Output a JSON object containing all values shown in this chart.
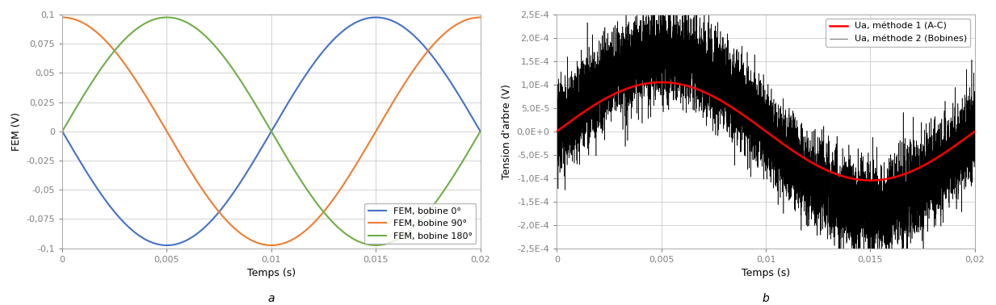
{
  "plot_a": {
    "xlabel": "Temps (s)",
    "ylabel": "FEM (V)",
    "xlim": [
      0,
      0.02
    ],
    "ylim": [
      -0.1,
      0.1
    ],
    "xticks": [
      0,
      0.005,
      0.01,
      0.015,
      0.02
    ],
    "xtick_labels": [
      "0",
      "0,005",
      "0,01",
      "0,015",
      "0,02"
    ],
    "yticks": [
      -0.1,
      -0.075,
      -0.05,
      -0.025,
      0,
      0.025,
      0.05,
      0.075,
      0.1
    ],
    "ytick_labels": [
      "-0,1",
      "-0,075",
      "-0,05",
      "-0,025",
      "0",
      "0,025",
      "0,05",
      "0,075",
      "0,1"
    ],
    "amplitude": 0.0975,
    "frequency": 50,
    "color_0": "#4472C4",
    "color_90": "#ED7D31",
    "color_180": "#70AD47",
    "label_0": "FEM, bobine 0°",
    "label_90": "FEM, bobine 90°",
    "label_180": "FEM, bobine 180°",
    "legend_loc": "lower right"
  },
  "plot_b": {
    "xlabel": "Temps (s)",
    "ylabel": "Tension d'arbre (V)",
    "xlim": [
      0,
      0.02
    ],
    "ylim": [
      -0.00025,
      0.00025
    ],
    "xticks": [
      0,
      0.005,
      0.01,
      0.015,
      0.02
    ],
    "xtick_labels": [
      "0",
      "0,005",
      "0,01",
      "0,015",
      "0,02"
    ],
    "yticks": [
      -0.00025,
      -0.0002,
      -0.00015,
      -0.0001,
      -5e-05,
      0.0,
      5e-05,
      0.0001,
      0.00015,
      0.0002,
      0.00025
    ],
    "ytick_labels": [
      "-2,5E-4",
      "-2,0E-4",
      "-1,5E-4",
      "-1,0E-4",
      "-5,0E-5",
      "0,0E+0",
      "5,0E-5",
      "1,0E-4",
      "1,5E-4",
      "2,0E-4",
      "2,5E-4"
    ],
    "amplitude_smooth": 0.000105,
    "amplitude_noisy": 0.000162,
    "frequency": 50,
    "noise_amplitude": 4.5e-05,
    "color_smooth": "#FF0000",
    "color_noisy": "#000000",
    "label_smooth": "Ua, méthode 1 (A-C)",
    "label_noisy": "Ua, méthode 2 (Bobines)",
    "legend_loc": "upper right"
  },
  "label_a": "a",
  "label_b": "b",
  "background_color": "#FFFFFF",
  "grid_color": "#C0C0C0",
  "tick_color": "#808080",
  "spine_color": "#AAAAAA"
}
